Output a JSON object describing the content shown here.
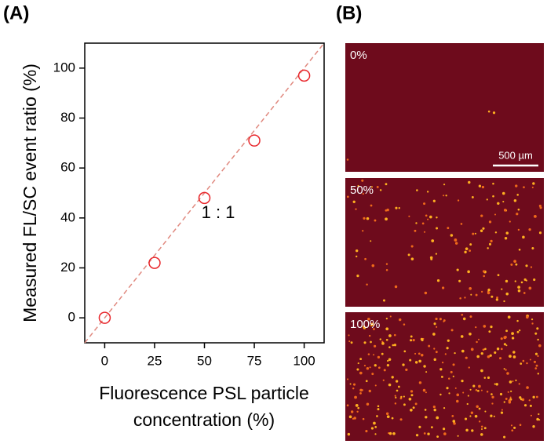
{
  "panels": {
    "a": "(A)",
    "b": "(B)"
  },
  "chart_data": {
    "type": "scatter",
    "xlabel": [
      "Fluorescence PSL particle",
      "concentration (%)"
    ],
    "ylabel": "Measured FL/SC event ratio (%)",
    "annotation": "1 : 1",
    "x": [
      0,
      25,
      50,
      75,
      100
    ],
    "series": [
      {
        "color": "#e8262b",
        "values": [
          0,
          22,
          48,
          71,
          97
        ]
      }
    ],
    "reference_color": "#e0897f",
    "xlim": [
      -10,
      110
    ],
    "ylim": [
      -10,
      110
    ],
    "xticks": [
      0,
      25,
      50,
      75,
      100
    ],
    "yticks": [
      0,
      20,
      40,
      60,
      80,
      100
    ]
  },
  "micrographs": [
    {
      "label": "0%"
    },
    {
      "label": "50%"
    },
    {
      "label": "100%"
    }
  ],
  "scale_bar": "500 µm"
}
